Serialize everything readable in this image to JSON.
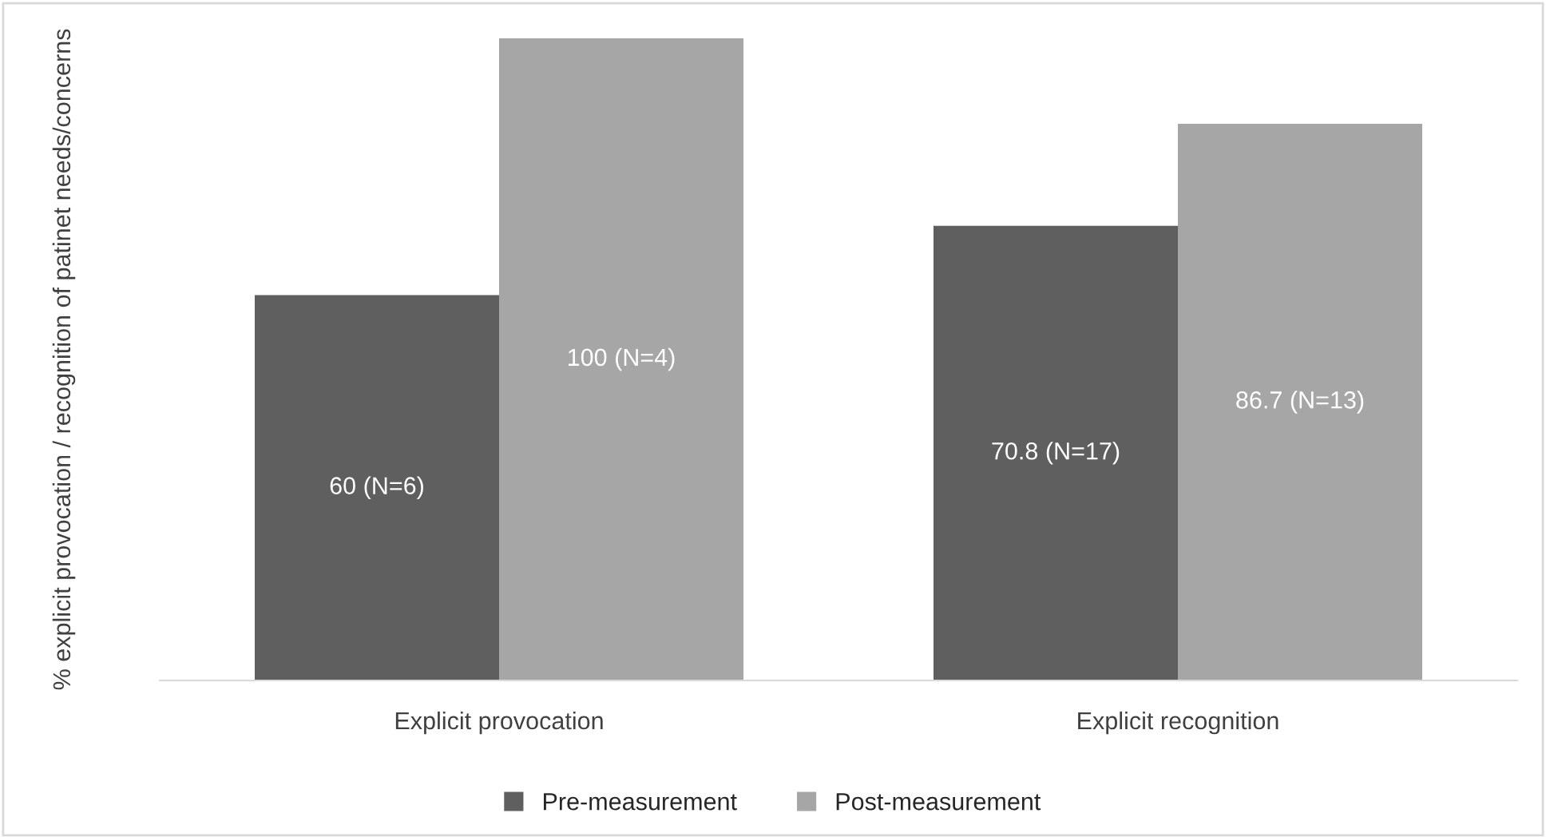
{
  "chart_data": {
    "type": "bar",
    "ylabel": "% explicit provocation / recognition of patinet needs/concerns",
    "categories": [
      "Explicit provocation",
      "Explicit recognition"
    ],
    "series": [
      {
        "name": "Pre-measurement",
        "color": "#5f5f5f",
        "values": [
          60,
          70.8
        ],
        "value_labels": [
          "60 (N=6)",
          "70.8 (N=17)"
        ]
      },
      {
        "name": "Post-measurement",
        "color": "#a6a6a6",
        "values": [
          100,
          86.7
        ],
        "value_labels": [
          "100 (N=4)",
          "86.7 (N=13)"
        ]
      }
    ],
    "grid": false,
    "legend": "bottom",
    "tick_labels": "x"
  }
}
